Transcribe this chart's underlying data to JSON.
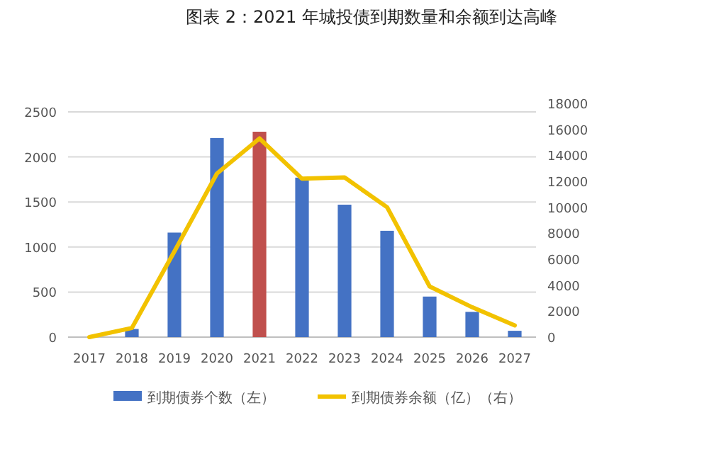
{
  "chart_data": {
    "type": "bar",
    "title": "图表 2：2021 年城投债到期数量和余额到达高峰",
    "categories": [
      "2017",
      "2018",
      "2019",
      "2020",
      "2021",
      "2022",
      "2023",
      "2024",
      "2025",
      "2026",
      "2027"
    ],
    "series": [
      {
        "name": "到期债券个数（左）",
        "color": "#4472c4",
        "colors": [
          "#4472c4",
          "#4472c4",
          "#4472c4",
          "#4472c4",
          "#c0504d",
          "#4472c4",
          "#4472c4",
          "#4472c4",
          "#4472c4",
          "#4472c4",
          "#4472c4"
        ],
        "values": [
          0,
          90,
          1160,
          2210,
          2280,
          1770,
          1470,
          1180,
          450,
          280,
          70
        ]
      },
      {
        "name": "到期债券余额（亿）（右）",
        "type": "line",
        "axis": "y2",
        "color": "#f2c200",
        "values": [
          0,
          700,
          6600,
          12600,
          15300,
          12200,
          12300,
          10000,
          3900,
          2300,
          900
        ]
      }
    ],
    "ylim": [
      0,
      2500
    ],
    "yticks": [
      0,
      500,
      1000,
      1500,
      2000,
      2500
    ],
    "y2lim": [
      0,
      18000
    ],
    "y2ticks": [
      0,
      2000,
      4000,
      6000,
      8000,
      10000,
      12000,
      14000,
      16000,
      18000
    ],
    "grid": "y",
    "legend": "bottom"
  }
}
